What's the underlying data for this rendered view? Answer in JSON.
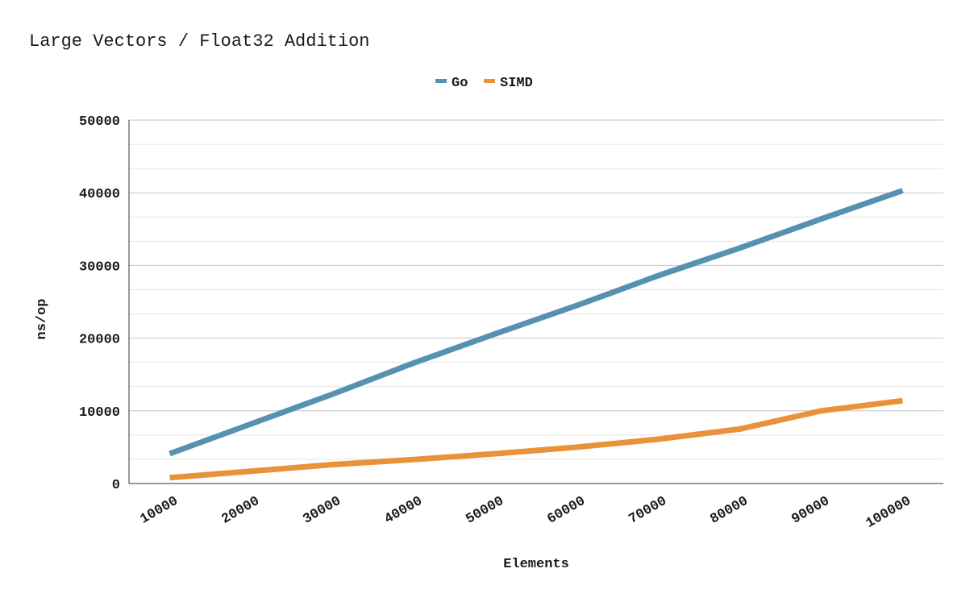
{
  "chart_data": {
    "type": "line",
    "title": "Large Vectors / Float32 Addition",
    "xlabel": "Elements",
    "ylabel": "ns/op",
    "categories": [
      "10000",
      "20000",
      "30000",
      "40000",
      "50000",
      "60000",
      "70000",
      "80000",
      "90000",
      "100000"
    ],
    "ylim": [
      0,
      50000
    ],
    "yticks": [
      "0",
      "10000",
      "20000",
      "30000",
      "40000",
      "50000"
    ],
    "legend_position": "top-center",
    "grid": true,
    "series": [
      {
        "name": "Go",
        "color": "#5791b0",
        "values": [
          4100,
          8200,
          12300,
          16600,
          20600,
          24500,
          28600,
          32400,
          36400,
          40300
        ]
      },
      {
        "name": "SIMD",
        "color": "#e8923a",
        "values": [
          800,
          1700,
          2600,
          3300,
          4100,
          5000,
          6100,
          7500,
          10000,
          11400
        ]
      }
    ]
  }
}
